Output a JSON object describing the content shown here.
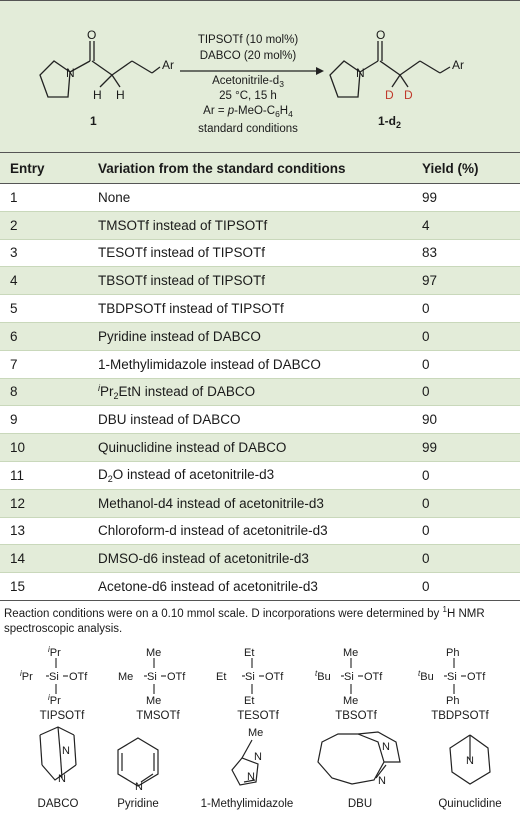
{
  "scheme": {
    "reagent_1": "TIPSOTf (10 mol%)",
    "reagent_2": "DABCO (20 mol%)",
    "solvent": "Acetonitrile-d",
    "solvent_sub": "3",
    "conditions": "25 °C, 15 h",
    "ar_prefix": "Ar = ",
    "ar_p": "p",
    "ar_rest": "-MeO-C",
    "ar_sub1": "6",
    "ar_h": "H",
    "ar_sub2": "4",
    "std": "standard conditions",
    "sm_label": "1",
    "prod_label": "1-d",
    "prod_sub": "2",
    "atoms": {
      "O": "O",
      "N": "N",
      "H": "H",
      "D": "D",
      "Ar": "Ar"
    }
  },
  "table": {
    "headers": [
      "Entry",
      "Variation from the standard conditions",
      "Yield (%)"
    ],
    "rows": [
      {
        "entry": "1",
        "variation": "None",
        "yield": "99"
      },
      {
        "entry": "2",
        "variation": "TMSOTf instead of TIPSOTf",
        "yield": "4"
      },
      {
        "entry": "3",
        "variation": "TESOTf instead of TIPSOTf",
        "yield": "83"
      },
      {
        "entry": "4",
        "variation": "TBSOTf instead of TIPSOTf",
        "yield": "97"
      },
      {
        "entry": "5",
        "variation": "TBDPSOTf instead of TIPSOTf",
        "yield": "0"
      },
      {
        "entry": "6",
        "variation": "Pyridine instead of DABCO",
        "yield": "0"
      },
      {
        "entry": "7",
        "variation": "1-Methylimidazole instead of DABCO",
        "yield": "0"
      },
      {
        "entry": "8",
        "variation_sup": "i",
        "variation_pre": "Pr",
        "variation_sub": "2",
        "variation": "EtN instead of DABCO",
        "yield": "0"
      },
      {
        "entry": "9",
        "variation": "DBU instead of DABCO",
        "yield": "90"
      },
      {
        "entry": "10",
        "variation": "Quinuclidine instead of DABCO",
        "yield": "99"
      },
      {
        "entry": "11",
        "variation_pre": "D",
        "variation_sub": "2",
        "variation": "O instead of acetonitrile-d3",
        "yield": "0"
      },
      {
        "entry": "12",
        "variation": "Methanol-d4 instead of acetonitrile-d3",
        "yield": "0"
      },
      {
        "entry": "13",
        "variation": "Chloroform-d instead of acetonitrile-d3",
        "yield": "0"
      },
      {
        "entry": "14",
        "variation": "DMSO-d6 instead of acetonitrile-d3",
        "yield": "0"
      },
      {
        "entry": "15",
        "variation": "Acetone-d6 instead of acetonitrile-d3",
        "yield": "0"
      }
    ]
  },
  "footnote": {
    "part1": "Reaction conditions were on a 0.10 mmol scale. D incorporations were determined by ",
    "sup": "1",
    "part2": "H NMR spectroscopic analysis."
  },
  "structures": {
    "silyl": [
      {
        "label": "TIPSOTf",
        "top": "Pr",
        "mid": "Pr",
        "bot": "Pr",
        "sup": "i"
      },
      {
        "label": "TMSOTf",
        "top": "Me",
        "mid": "Me",
        "bot": "Me"
      },
      {
        "label": "TESOTf",
        "top": "Et",
        "mid": "Et",
        "bot": "Et"
      },
      {
        "label": "TBSOTf",
        "top": "Me",
        "mid": "Bu",
        "bot": "Me",
        "sup": "t"
      },
      {
        "label": "TBDPSOTf",
        "top": "Ph",
        "mid": "Bu",
        "bot": "Ph",
        "sup": "t"
      }
    ],
    "si": "Si",
    "otf": "OTf",
    "bases": [
      "DABCO",
      "Pyridine",
      "1-Methylimidazole",
      "DBU",
      "Quinuclidine"
    ],
    "base_atoms": {
      "N": "N",
      "Me": "Me"
    }
  }
}
